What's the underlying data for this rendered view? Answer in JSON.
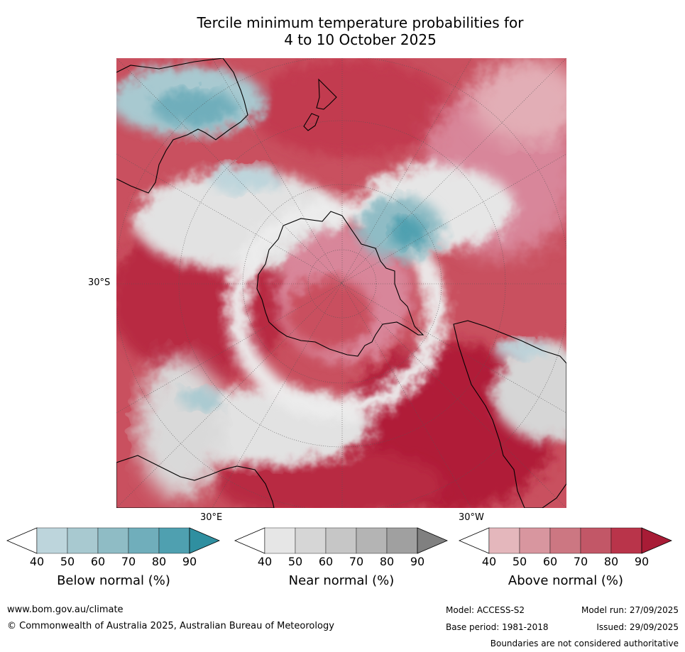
{
  "title_line1": "Tercile minimum temperature probabilities for",
  "title_line2": "4 to 10 October 2025",
  "map": {
    "lat_label": "30°S",
    "lon_label_east": "30°E",
    "lon_label_west": "30°W",
    "colors": {
      "ocean_default": "#e0e0e0",
      "land_outline": "#000000"
    }
  },
  "colorbars": [
    {
      "name": "below-normal",
      "title": "Below normal (%)",
      "ticks": [
        "40",
        "50",
        "60",
        "70",
        "80",
        "90"
      ],
      "colors": [
        "#ffffff",
        "#bdd5dc",
        "#a8c9d0",
        "#8fbcc5",
        "#70aebb",
        "#4fa0b0",
        "#2f8fa0"
      ]
    },
    {
      "name": "near-normal",
      "title": "Near normal (%)",
      "ticks": [
        "40",
        "50",
        "60",
        "70",
        "80",
        "90"
      ],
      "colors": [
        "#ffffff",
        "#e6e6e6",
        "#d6d6d6",
        "#c6c6c6",
        "#b4b4b4",
        "#a0a0a0",
        "#808080"
      ]
    },
    {
      "name": "above-normal",
      "title": "Above normal (%)",
      "ticks": [
        "40",
        "50",
        "60",
        "70",
        "80",
        "90"
      ],
      "colors": [
        "#ffffff",
        "#e4b7bc",
        "#d8969f",
        "#cc7782",
        "#c25767",
        "#b9344a",
        "#a81c36"
      ]
    }
  ],
  "footer": {
    "url": "www.bom.gov.au/climate",
    "copyright": "© Commonwealth of Australia 2025, Australian Bureau of Meteorology",
    "model": "Model: ACCESS-S2",
    "base_period": "Base period: 1981-2018",
    "model_run": "Model run: 27/09/2025",
    "issued": "Issued: 29/09/2025",
    "disclaimer": "Boundaries are not considered authoritative"
  }
}
